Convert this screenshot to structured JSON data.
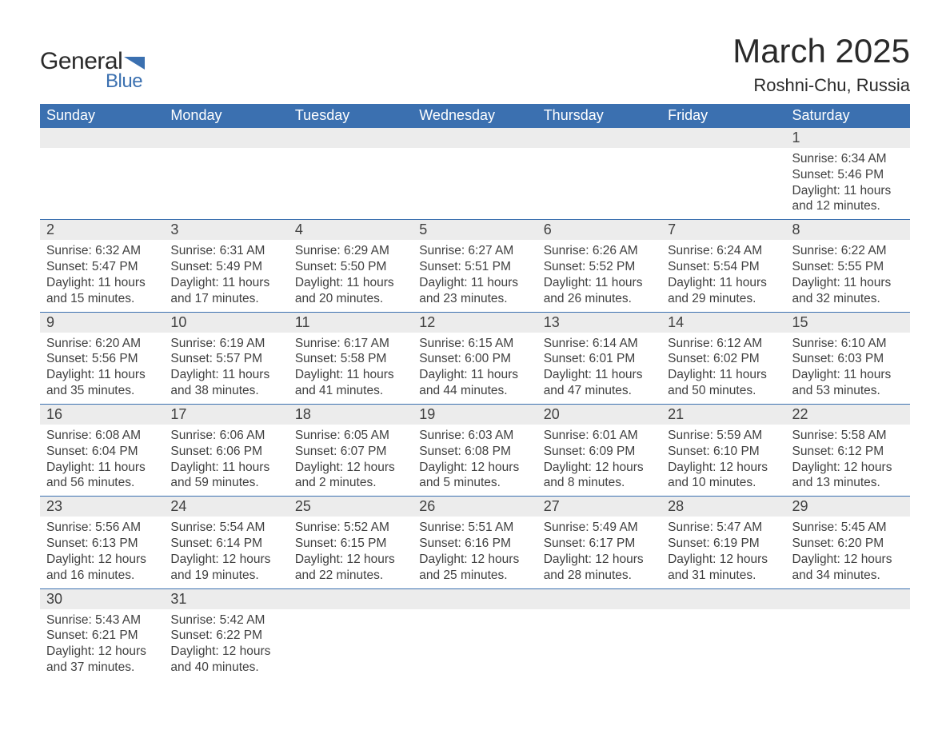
{
  "logo": {
    "text1": "General",
    "text2": "Blue",
    "shape_color": "#3b70b0",
    "text1_color": "#2a2a2a"
  },
  "title": "March 2025",
  "location": "Roshni-Chu, Russia",
  "colors": {
    "header_bg": "#3b70b0",
    "header_text": "#ffffff",
    "daynum_bg": "#ececec",
    "border": "#3b70b0",
    "body_text": "#404040",
    "page_bg": "#ffffff"
  },
  "font": {
    "family": "Arial",
    "title_size": 42,
    "location_size": 22,
    "header_size": 18,
    "day_size": 18,
    "detail_size": 15.5
  },
  "day_headers": [
    "Sunday",
    "Monday",
    "Tuesday",
    "Wednesday",
    "Thursday",
    "Friday",
    "Saturday"
  ],
  "weeks": [
    [
      null,
      null,
      null,
      null,
      null,
      null,
      {
        "n": "1",
        "sr": "Sunrise: 6:34 AM",
        "ss": "Sunset: 5:46 PM",
        "dl": "Daylight: 11 hours and 12 minutes."
      }
    ],
    [
      {
        "n": "2",
        "sr": "Sunrise: 6:32 AM",
        "ss": "Sunset: 5:47 PM",
        "dl": "Daylight: 11 hours and 15 minutes."
      },
      {
        "n": "3",
        "sr": "Sunrise: 6:31 AM",
        "ss": "Sunset: 5:49 PM",
        "dl": "Daylight: 11 hours and 17 minutes."
      },
      {
        "n": "4",
        "sr": "Sunrise: 6:29 AM",
        "ss": "Sunset: 5:50 PM",
        "dl": "Daylight: 11 hours and 20 minutes."
      },
      {
        "n": "5",
        "sr": "Sunrise: 6:27 AM",
        "ss": "Sunset: 5:51 PM",
        "dl": "Daylight: 11 hours and 23 minutes."
      },
      {
        "n": "6",
        "sr": "Sunrise: 6:26 AM",
        "ss": "Sunset: 5:52 PM",
        "dl": "Daylight: 11 hours and 26 minutes."
      },
      {
        "n": "7",
        "sr": "Sunrise: 6:24 AM",
        "ss": "Sunset: 5:54 PM",
        "dl": "Daylight: 11 hours and 29 minutes."
      },
      {
        "n": "8",
        "sr": "Sunrise: 6:22 AM",
        "ss": "Sunset: 5:55 PM",
        "dl": "Daylight: 11 hours and 32 minutes."
      }
    ],
    [
      {
        "n": "9",
        "sr": "Sunrise: 6:20 AM",
        "ss": "Sunset: 5:56 PM",
        "dl": "Daylight: 11 hours and 35 minutes."
      },
      {
        "n": "10",
        "sr": "Sunrise: 6:19 AM",
        "ss": "Sunset: 5:57 PM",
        "dl": "Daylight: 11 hours and 38 minutes."
      },
      {
        "n": "11",
        "sr": "Sunrise: 6:17 AM",
        "ss": "Sunset: 5:58 PM",
        "dl": "Daylight: 11 hours and 41 minutes."
      },
      {
        "n": "12",
        "sr": "Sunrise: 6:15 AM",
        "ss": "Sunset: 6:00 PM",
        "dl": "Daylight: 11 hours and 44 minutes."
      },
      {
        "n": "13",
        "sr": "Sunrise: 6:14 AM",
        "ss": "Sunset: 6:01 PM",
        "dl": "Daylight: 11 hours and 47 minutes."
      },
      {
        "n": "14",
        "sr": "Sunrise: 6:12 AM",
        "ss": "Sunset: 6:02 PM",
        "dl": "Daylight: 11 hours and 50 minutes."
      },
      {
        "n": "15",
        "sr": "Sunrise: 6:10 AM",
        "ss": "Sunset: 6:03 PM",
        "dl": "Daylight: 11 hours and 53 minutes."
      }
    ],
    [
      {
        "n": "16",
        "sr": "Sunrise: 6:08 AM",
        "ss": "Sunset: 6:04 PM",
        "dl": "Daylight: 11 hours and 56 minutes."
      },
      {
        "n": "17",
        "sr": "Sunrise: 6:06 AM",
        "ss": "Sunset: 6:06 PM",
        "dl": "Daylight: 11 hours and 59 minutes."
      },
      {
        "n": "18",
        "sr": "Sunrise: 6:05 AM",
        "ss": "Sunset: 6:07 PM",
        "dl": "Daylight: 12 hours and 2 minutes."
      },
      {
        "n": "19",
        "sr": "Sunrise: 6:03 AM",
        "ss": "Sunset: 6:08 PM",
        "dl": "Daylight: 12 hours and 5 minutes."
      },
      {
        "n": "20",
        "sr": "Sunrise: 6:01 AM",
        "ss": "Sunset: 6:09 PM",
        "dl": "Daylight: 12 hours and 8 minutes."
      },
      {
        "n": "21",
        "sr": "Sunrise: 5:59 AM",
        "ss": "Sunset: 6:10 PM",
        "dl": "Daylight: 12 hours and 10 minutes."
      },
      {
        "n": "22",
        "sr": "Sunrise: 5:58 AM",
        "ss": "Sunset: 6:12 PM",
        "dl": "Daylight: 12 hours and 13 minutes."
      }
    ],
    [
      {
        "n": "23",
        "sr": "Sunrise: 5:56 AM",
        "ss": "Sunset: 6:13 PM",
        "dl": "Daylight: 12 hours and 16 minutes."
      },
      {
        "n": "24",
        "sr": "Sunrise: 5:54 AM",
        "ss": "Sunset: 6:14 PM",
        "dl": "Daylight: 12 hours and 19 minutes."
      },
      {
        "n": "25",
        "sr": "Sunrise: 5:52 AM",
        "ss": "Sunset: 6:15 PM",
        "dl": "Daylight: 12 hours and 22 minutes."
      },
      {
        "n": "26",
        "sr": "Sunrise: 5:51 AM",
        "ss": "Sunset: 6:16 PM",
        "dl": "Daylight: 12 hours and 25 minutes."
      },
      {
        "n": "27",
        "sr": "Sunrise: 5:49 AM",
        "ss": "Sunset: 6:17 PM",
        "dl": "Daylight: 12 hours and 28 minutes."
      },
      {
        "n": "28",
        "sr": "Sunrise: 5:47 AM",
        "ss": "Sunset: 6:19 PM",
        "dl": "Daylight: 12 hours and 31 minutes."
      },
      {
        "n": "29",
        "sr": "Sunrise: 5:45 AM",
        "ss": "Sunset: 6:20 PM",
        "dl": "Daylight: 12 hours and 34 minutes."
      }
    ],
    [
      {
        "n": "30",
        "sr": "Sunrise: 5:43 AM",
        "ss": "Sunset: 6:21 PM",
        "dl": "Daylight: 12 hours and 37 minutes."
      },
      {
        "n": "31",
        "sr": "Sunrise: 5:42 AM",
        "ss": "Sunset: 6:22 PM",
        "dl": "Daylight: 12 hours and 40 minutes."
      },
      null,
      null,
      null,
      null,
      null
    ]
  ]
}
